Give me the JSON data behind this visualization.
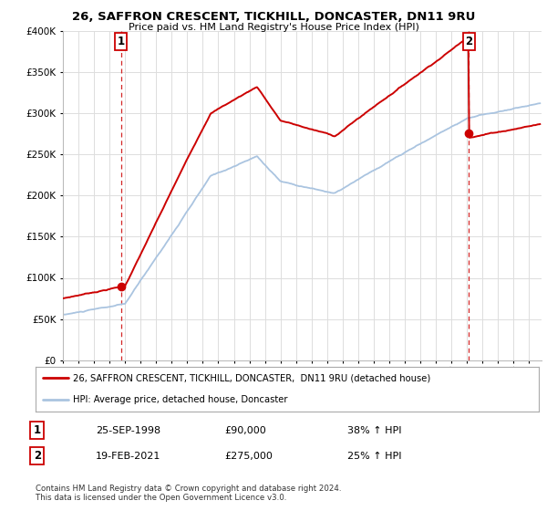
{
  "title": "26, SAFFRON CRESCENT, TICKHILL, DONCASTER, DN11 9RU",
  "subtitle": "Price paid vs. HM Land Registry's House Price Index (HPI)",
  "ylabel_ticks": [
    "£0",
    "£50K",
    "£100K",
    "£150K",
    "£200K",
    "£250K",
    "£300K",
    "£350K",
    "£400K"
  ],
  "ytick_values": [
    0,
    50000,
    100000,
    150000,
    200000,
    250000,
    300000,
    350000,
    400000
  ],
  "ylim": [
    0,
    400000
  ],
  "sale1": {
    "date_num": 1998.73,
    "price": 90000,
    "label": "1"
  },
  "sale2": {
    "date_num": 2021.13,
    "price": 275000,
    "label": "2"
  },
  "legend_line1": "26, SAFFRON CRESCENT, TICKHILL, DONCASTER,  DN11 9RU (detached house)",
  "legend_line2": "HPI: Average price, detached house, Doncaster",
  "table_rows": [
    [
      "1",
      "25-SEP-1998",
      "£90,000",
      "38% ↑ HPI"
    ],
    [
      "2",
      "19-FEB-2021",
      "£275,000",
      "25% ↑ HPI"
    ]
  ],
  "footer": "Contains HM Land Registry data © Crown copyright and database right 2024.\nThis data is licensed under the Open Government Licence v3.0.",
  "hpi_color": "#aac4e0",
  "price_color": "#cc0000",
  "background_color": "#ffffff",
  "grid_color": "#dddddd",
  "xlim_start": 1995.0,
  "xlim_end": 2025.8
}
